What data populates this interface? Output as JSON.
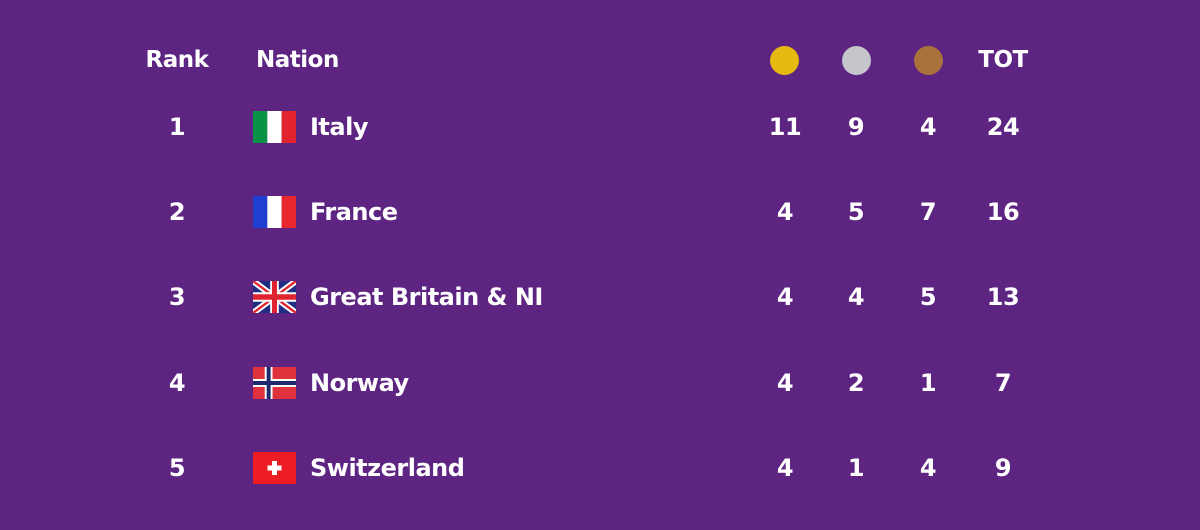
{
  "header": {
    "rank_label": "Rank",
    "nation_label": "Nation",
    "total_label": "TOT",
    "gold_icon": "gold-medal-icon",
    "silver_icon": "silver-medal-icon",
    "bronze_icon": "bronze-medal-icon"
  },
  "colors": {
    "background": "#5e2482",
    "gold": "#e8b812",
    "silver": "#c4c6cc",
    "bronze": "#a8723a"
  },
  "rows": [
    {
      "rank": "1",
      "nation": "Italy",
      "flag": "italy-flag-icon",
      "gold": "11",
      "silver": "9",
      "bronze": "4",
      "total": "24"
    },
    {
      "rank": "2",
      "nation": "France",
      "flag": "france-flag-icon",
      "gold": "4",
      "silver": "5",
      "bronze": "7",
      "total": "16"
    },
    {
      "rank": "3",
      "nation": "Great Britain & NI",
      "flag": "great-britain-flag-icon",
      "gold": "4",
      "silver": "4",
      "bronze": "5",
      "total": "13"
    },
    {
      "rank": "4",
      "nation": "Norway",
      "flag": "norway-flag-icon",
      "gold": "4",
      "silver": "2",
      "bronze": "1",
      "total": "7"
    },
    {
      "rank": "5",
      "nation": "Switzerland",
      "flag": "switzerland-flag-icon",
      "gold": "4",
      "silver": "1",
      "bronze": "4",
      "total": "9"
    }
  ]
}
